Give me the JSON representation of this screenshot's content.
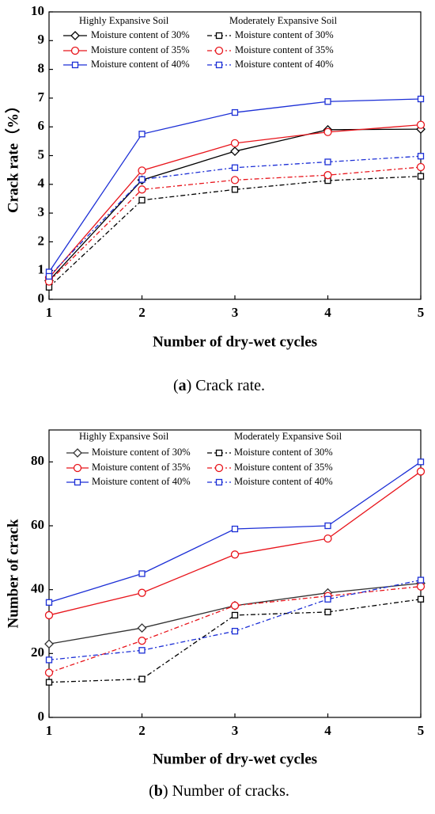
{
  "chart_data": [
    {
      "type": "line",
      "x_label": "Number of dry-wet cycles",
      "y_label": "Crack rate（%）",
      "caption": {
        "prefix": "(",
        "label": "a",
        "suffix": ") Crack rate."
      },
      "legend_groups": [
        "Highly Expansive Soil",
        "Moderately Expansive Soil"
      ],
      "x": [
        1,
        2,
        3,
        4,
        5
      ],
      "xlim": [
        1,
        5
      ],
      "xticks": [
        1,
        2,
        3,
        4,
        5
      ],
      "ylim": [
        0,
        10
      ],
      "yticks": [
        0,
        1,
        2,
        3,
        4,
        5,
        6,
        7,
        8,
        9,
        10
      ],
      "series": [
        {
          "name": "Moisture content of 30%",
          "group": 0,
          "color": "#000000",
          "marker": "diamond",
          "linestyle": "solid",
          "values": [
            0.65,
            4.15,
            5.15,
            5.9,
            5.92
          ]
        },
        {
          "name": "Moisture content of 35%",
          "group": 0,
          "color": "#e8141b",
          "marker": "circle",
          "linestyle": "solid",
          "values": [
            0.75,
            4.48,
            5.43,
            5.82,
            6.07
          ]
        },
        {
          "name": "Moisture content of 40%",
          "group": 0,
          "color": "#1c2fd6",
          "marker": "square",
          "linestyle": "solid",
          "values": [
            0.95,
            5.75,
            6.5,
            6.88,
            6.97
          ]
        },
        {
          "name": "Moisture content of 30%",
          "group": 1,
          "color": "#000000",
          "marker": "square",
          "linestyle": "dashdot",
          "values": [
            0.42,
            3.45,
            3.82,
            4.13,
            4.28
          ]
        },
        {
          "name": "Moisture content of 35%",
          "group": 1,
          "color": "#e8141b",
          "marker": "circle",
          "linestyle": "dashdot",
          "values": [
            0.62,
            3.82,
            4.15,
            4.32,
            4.6
          ]
        },
        {
          "name": "Moisture content of 40%",
          "group": 1,
          "color": "#1c2fd6",
          "marker": "square",
          "linestyle": "dashdot",
          "values": [
            0.8,
            4.17,
            4.58,
            4.78,
            4.98
          ]
        }
      ]
    },
    {
      "type": "line",
      "x_label": "Number of dry-wet cycles",
      "y_label": "Number of crack",
      "caption": {
        "prefix": "(",
        "label": "b",
        "suffix": ") Number of cracks."
      },
      "legend_groups": [
        "Highly Expansive Soil",
        "Moderately Expansive Soil"
      ],
      "x": [
        1,
        2,
        3,
        4,
        5
      ],
      "xlim": [
        1,
        5
      ],
      "xticks": [
        1,
        2,
        3,
        4,
        5
      ],
      "ylim": [
        0,
        90
      ],
      "yticks": [
        0,
        20,
        40,
        60,
        80
      ],
      "series": [
        {
          "name": "Moisture content of 30%",
          "group": 0,
          "color": "#333333",
          "marker": "diamond",
          "linestyle": "solid",
          "values": [
            23,
            28,
            35,
            39,
            42
          ]
        },
        {
          "name": "Moisture content of 35%",
          "group": 0,
          "color": "#e8141b",
          "marker": "circle",
          "linestyle": "solid",
          "values": [
            32,
            39,
            51,
            56,
            77
          ]
        },
        {
          "name": "Moisture content of 40%",
          "group": 0,
          "color": "#1c2fd6",
          "marker": "square",
          "linestyle": "solid",
          "values": [
            36,
            45,
            59,
            60,
            80
          ]
        },
        {
          "name": "Moisture content of 30%",
          "group": 1,
          "color": "#000000",
          "marker": "square",
          "linestyle": "dashdot",
          "values": [
            11,
            12,
            32,
            33,
            37
          ]
        },
        {
          "name": "Moisture content of 35%",
          "group": 1,
          "color": "#e8141b",
          "marker": "circle",
          "linestyle": "dashdot",
          "values": [
            14,
            24,
            35,
            38,
            41
          ]
        },
        {
          "name": "Moisture content of 40%",
          "group": 1,
          "color": "#1c2fd6",
          "marker": "square",
          "linestyle": "dashdot",
          "values": [
            18,
            21,
            27,
            37,
            43
          ]
        }
      ]
    }
  ]
}
